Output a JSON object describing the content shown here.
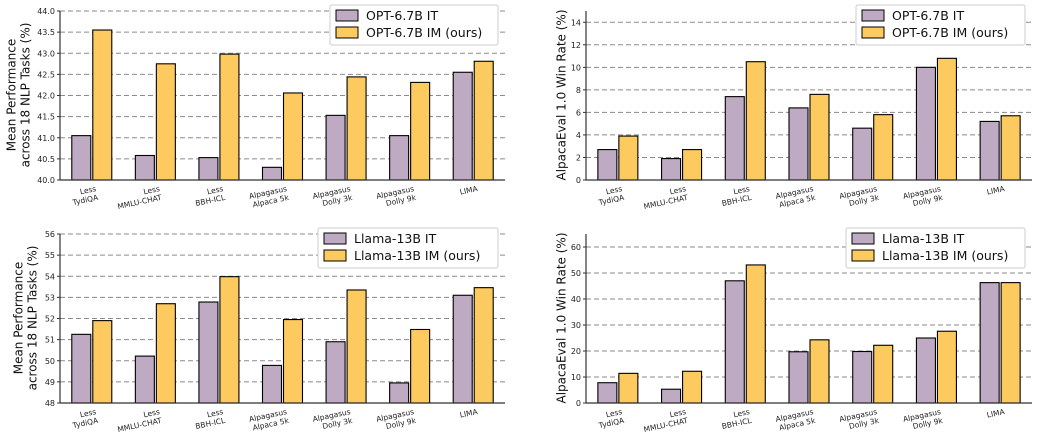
{
  "chart_data": [
    {
      "type": "bar",
      "categories": [
        [
          "Less",
          "TydiQA"
        ],
        [
          "Less",
          "MMLU-CHAT"
        ],
        [
          "Less",
          "BBH-ICL"
        ],
        [
          "Alpagasus",
          "Alpaca 5k"
        ],
        [
          "Alpagasus",
          "Dolly 3k"
        ],
        [
          "Alpagasus",
          "Dolly 9k"
        ],
        [
          "LIMA"
        ]
      ],
      "series": [
        {
          "name": "OPT-6.7B IT",
          "values": [
            41.05,
            40.58,
            40.53,
            40.3,
            41.53,
            41.05,
            42.55
          ]
        },
        {
          "name": "OPT-6.7B IM (ours)",
          "values": [
            43.55,
            42.75,
            42.98,
            42.06,
            42.44,
            42.31,
            42.81
          ]
        }
      ],
      "ylabel": [
        "Mean Performance",
        "across 18 NLP Tasks (%)"
      ],
      "ylim": [
        40.0,
        44.0
      ],
      "yticks": [
        "40.0",
        "40.5",
        "41.0",
        "41.5",
        "42.0",
        "42.5",
        "43.0",
        "43.5",
        "44.0"
      ],
      "grid": true,
      "legend_position": "top-right"
    },
    {
      "type": "bar",
      "categories": [
        [
          "Less",
          "TydiQA"
        ],
        [
          "Less",
          "MMLU-CHAT"
        ],
        [
          "Less",
          "BBH-ICL"
        ],
        [
          "Alpagasus",
          "Alpaca 5k"
        ],
        [
          "Alpagasus",
          "Dolly 3k"
        ],
        [
          "Alpagasus",
          "Dolly 9k"
        ],
        [
          "LIMA"
        ]
      ],
      "series": [
        {
          "name": "OPT-6.7B IT",
          "values": [
            2.7,
            1.9,
            7.4,
            6.4,
            4.6,
            10.0,
            5.2
          ]
        },
        {
          "name": "OPT-6.7B IM (ours)",
          "values": [
            3.9,
            2.7,
            10.5,
            7.6,
            5.8,
            10.8,
            5.7
          ]
        }
      ],
      "ylabel": [
        "AlpacaEval 1.0 Win Rate (%)"
      ],
      "ylim": [
        0,
        15
      ],
      "yticks": [
        "0",
        "2",
        "4",
        "6",
        "8",
        "10",
        "12",
        "14"
      ],
      "grid": true,
      "legend_position": "top-right"
    },
    {
      "type": "bar",
      "categories": [
        [
          "Less",
          "TydiQA"
        ],
        [
          "Less",
          "MMLU-CHAT"
        ],
        [
          "Less",
          "BBH-ICL"
        ],
        [
          "Alpagasus",
          "Alpaca 5k"
        ],
        [
          "Alpagasus",
          "Dolly 3k"
        ],
        [
          "Alpagasus",
          "Dolly 9k"
        ],
        [
          "LIMA"
        ]
      ],
      "series": [
        {
          "name": "Llama-13B IT",
          "values": [
            51.25,
            50.22,
            52.78,
            49.78,
            50.9,
            48.95,
            53.1
          ]
        },
        {
          "name": "Llama-13B IM (ours)",
          "values": [
            51.9,
            52.7,
            53.98,
            51.95,
            53.35,
            51.48,
            53.46
          ]
        }
      ],
      "ylabel": [
        "Mean Performance",
        "across 18 NLP Tasks (%)"
      ],
      "ylim": [
        48,
        56
      ],
      "yticks": [
        "48",
        "49",
        "50",
        "51",
        "52",
        "53",
        "54",
        "55",
        "56"
      ],
      "grid": true,
      "legend_position": "top-right"
    },
    {
      "type": "bar",
      "categories": [
        [
          "Less",
          "TydiQA"
        ],
        [
          "Less",
          "MMLU-CHAT"
        ],
        [
          "Less",
          "BBH-ICL"
        ],
        [
          "Alpagasus",
          "Alpaca 5k"
        ],
        [
          "Alpagasus",
          "Dolly 3k"
        ],
        [
          "Alpagasus",
          "Dolly 9k"
        ],
        [
          "LIMA"
        ]
      ],
      "series": [
        {
          "name": "Llama-13B IT",
          "values": [
            7.8,
            5.3,
            47.0,
            19.7,
            19.8,
            25.0,
            46.3
          ]
        },
        {
          "name": "Llama-13B IM (ours)",
          "values": [
            11.4,
            12.2,
            53.1,
            24.3,
            22.2,
            27.6,
            46.3
          ]
        }
      ],
      "ylabel": [
        "AlpacaEval 1.0 Win Rate (%)"
      ],
      "ylim": [
        0,
        65
      ],
      "yticks": [
        "0",
        "10",
        "20",
        "30",
        "40",
        "50",
        "60"
      ],
      "grid": true,
      "legend_position": "top-right"
    }
  ],
  "colors": {
    "series_it": "#bfaac3",
    "series_im": "#fdca5f",
    "grid": "#8a8a8a",
    "axis": "#333333"
  }
}
